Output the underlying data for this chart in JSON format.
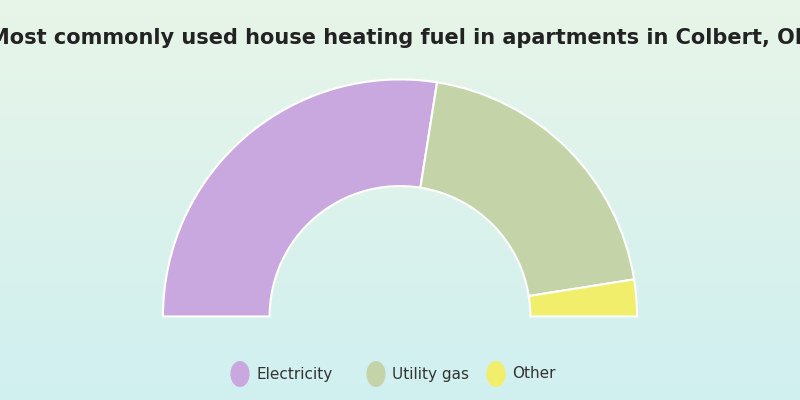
{
  "title": "Most commonly used house heating fuel in apartments in Colbert, OK",
  "segments": [
    {
      "label": "Electricity",
      "value": 55.0,
      "color": "#c9a8e0"
    },
    {
      "label": "Utility gas",
      "value": 40.0,
      "color": "#c5d4a8"
    },
    {
      "label": "Other",
      "value": 5.0,
      "color": "#f0ee6a"
    }
  ],
  "title_fontsize": 15,
  "title_color": "#222222",
  "legend_fontsize": 11,
  "legend_bg": "#00e8ff",
  "outer_r": 1.0,
  "inner_r": 0.55
}
